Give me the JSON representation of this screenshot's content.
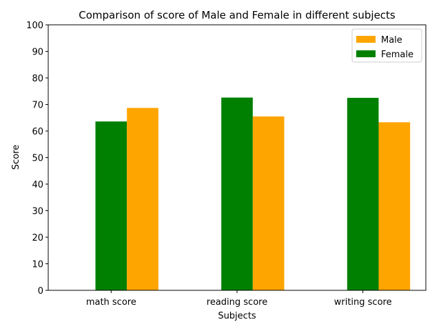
{
  "chart_data": {
    "type": "bar",
    "title": "Comparison of score of Male and Female in different subjects",
    "xlabel": "Subjects",
    "ylabel": "Score",
    "ylim": [
      0,
      100
    ],
    "yticks": [
      0,
      10,
      20,
      30,
      40,
      50,
      60,
      70,
      80,
      90,
      100
    ],
    "categories": [
      "math score",
      "reading score",
      "writing score"
    ],
    "series": [
      {
        "name": "Female",
        "color": "#008000",
        "values": [
          63.6,
          72.6,
          72.5
        ]
      },
      {
        "name": "Male",
        "color": "#FFA500",
        "values": [
          68.7,
          65.5,
          63.3
        ]
      }
    ],
    "legend": {
      "placement": "top-right",
      "order": [
        "Male",
        "Female"
      ]
    },
    "grid": false
  }
}
